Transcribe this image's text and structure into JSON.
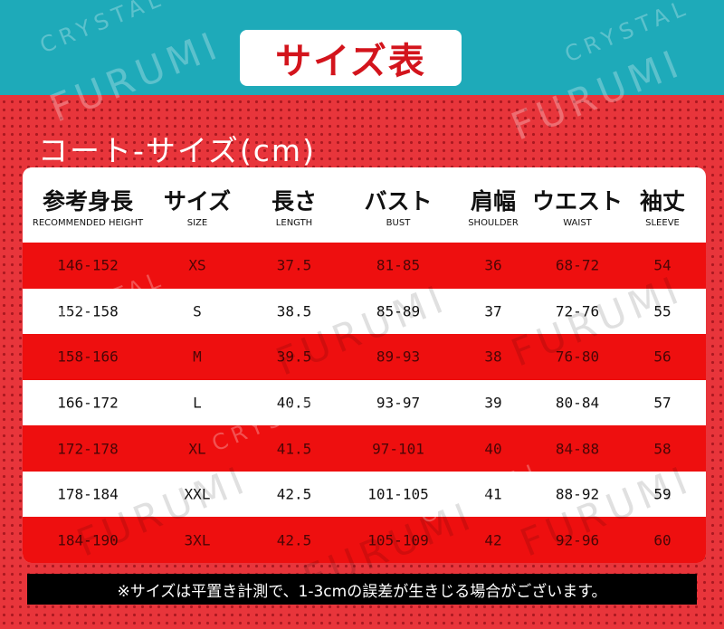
{
  "header": {
    "title": "サイズ表"
  },
  "subtitle": "コート-サイズ(cm)",
  "table": {
    "headers": [
      {
        "ja": "参考身長",
        "en": "RECOMMENDED HEIGHT"
      },
      {
        "ja": "サイズ",
        "en": "SIZE"
      },
      {
        "ja": "長さ",
        "en": "LENGTH"
      },
      {
        "ja": "バスト",
        "en": "BUST"
      },
      {
        "ja": "肩幅",
        "en": "SHOULDER"
      },
      {
        "ja": "ウエスト",
        "en": "WAIST"
      },
      {
        "ja": "袖丈",
        "en": "SLEEVE"
      }
    ],
    "rows": [
      [
        "146-152",
        "XS",
        "37.5",
        "81-85",
        "36",
        "68-72",
        "54"
      ],
      [
        "152-158",
        "S",
        "38.5",
        "85-89",
        "37",
        "72-76",
        "55"
      ],
      [
        "158-166",
        "M",
        "39.5",
        "89-93",
        "38",
        "76-80",
        "56"
      ],
      [
        "166-172",
        "L",
        "40.5",
        "93-97",
        "39",
        "80-84",
        "57"
      ],
      [
        "172-178",
        "XL",
        "41.5",
        "97-101",
        "40",
        "84-88",
        "58"
      ],
      [
        "178-184",
        "XXL",
        "42.5",
        "101-105",
        "41",
        "88-92",
        "59"
      ],
      [
        "184-190",
        "3XL",
        "42.5",
        "105-109",
        "42",
        "92-96",
        "60"
      ]
    ]
  },
  "footnote": "※サイズは平置き計測で、1-3cmの誤差が生きじる場合がございます。",
  "watermarks": [
    "FURUMI",
    "CRYSTAL"
  ]
}
